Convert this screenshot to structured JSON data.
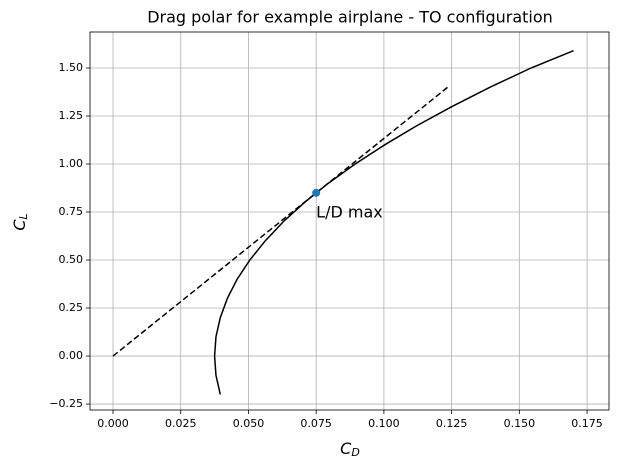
{
  "chart_data": {
    "type": "line",
    "title": "Drag polar for example airplane - TO configuration",
    "xlabel": [
      "C",
      "D"
    ],
    "ylabel": [
      "C",
      "L"
    ],
    "xlim": [
      -0.0085,
      0.1831
    ],
    "ylim": [
      -0.281,
      1.6875
    ],
    "xticks": [
      {
        "value": 0,
        "label": "0.000"
      },
      {
        "value": 0.025,
        "label": "0.025"
      },
      {
        "value": 0.05,
        "label": "0.050"
      },
      {
        "value": 0.075,
        "label": "0.075"
      },
      {
        "value": 0.1,
        "label": "0.100"
      },
      {
        "value": 0.125,
        "label": "0.125"
      },
      {
        "value": 0.15,
        "label": "0.150"
      },
      {
        "value": 0.175,
        "label": "0.175"
      }
    ],
    "yticks": [
      {
        "value": -0.25,
        "label": "−0.25"
      },
      {
        "value": 0,
        "label": "0.00"
      },
      {
        "value": 0.25,
        "label": "0.25"
      },
      {
        "value": 0.5,
        "label": "0.50"
      },
      {
        "value": 0.75,
        "label": "0.75"
      },
      {
        "value": 1,
        "label": "1.00"
      },
      {
        "value": 1.25,
        "label": "1.25"
      },
      {
        "value": 1.5,
        "label": "1.50"
      }
    ],
    "grid": true,
    "series": [
      {
        "color": "#000000",
        "dash": "solid",
        "x": [
          0.0396,
          0.038,
          0.0375,
          0.038,
          0.0396,
          0.0422,
          0.0458,
          0.0505,
          0.0562,
          0.0629,
          0.0707,
          0.0795,
          0.0894,
          0.1003,
          0.1122,
          0.1252,
          0.1392,
          0.1543,
          0.17
        ],
        "values": [
          -0.2,
          -0.1,
          0,
          0.1,
          0.2,
          0.3,
          0.4,
          0.5,
          0.6,
          0.7,
          0.8,
          0.9,
          1.0,
          1.1,
          1.2,
          1.3,
          1.4,
          1.5,
          1.59
        ]
      },
      {
        "color": "#000000",
        "dash": "dashed",
        "x": [
          0,
          0.124
        ],
        "values": [
          0,
          1.405
        ]
      }
    ],
    "points": {
      "color": "#1f77b4",
      "x": [
        0.075
      ],
      "values": [
        0.85
      ]
    },
    "annotation": {
      "text": "L/D max",
      "x": 0.075,
      "y": 0.85
    }
  }
}
